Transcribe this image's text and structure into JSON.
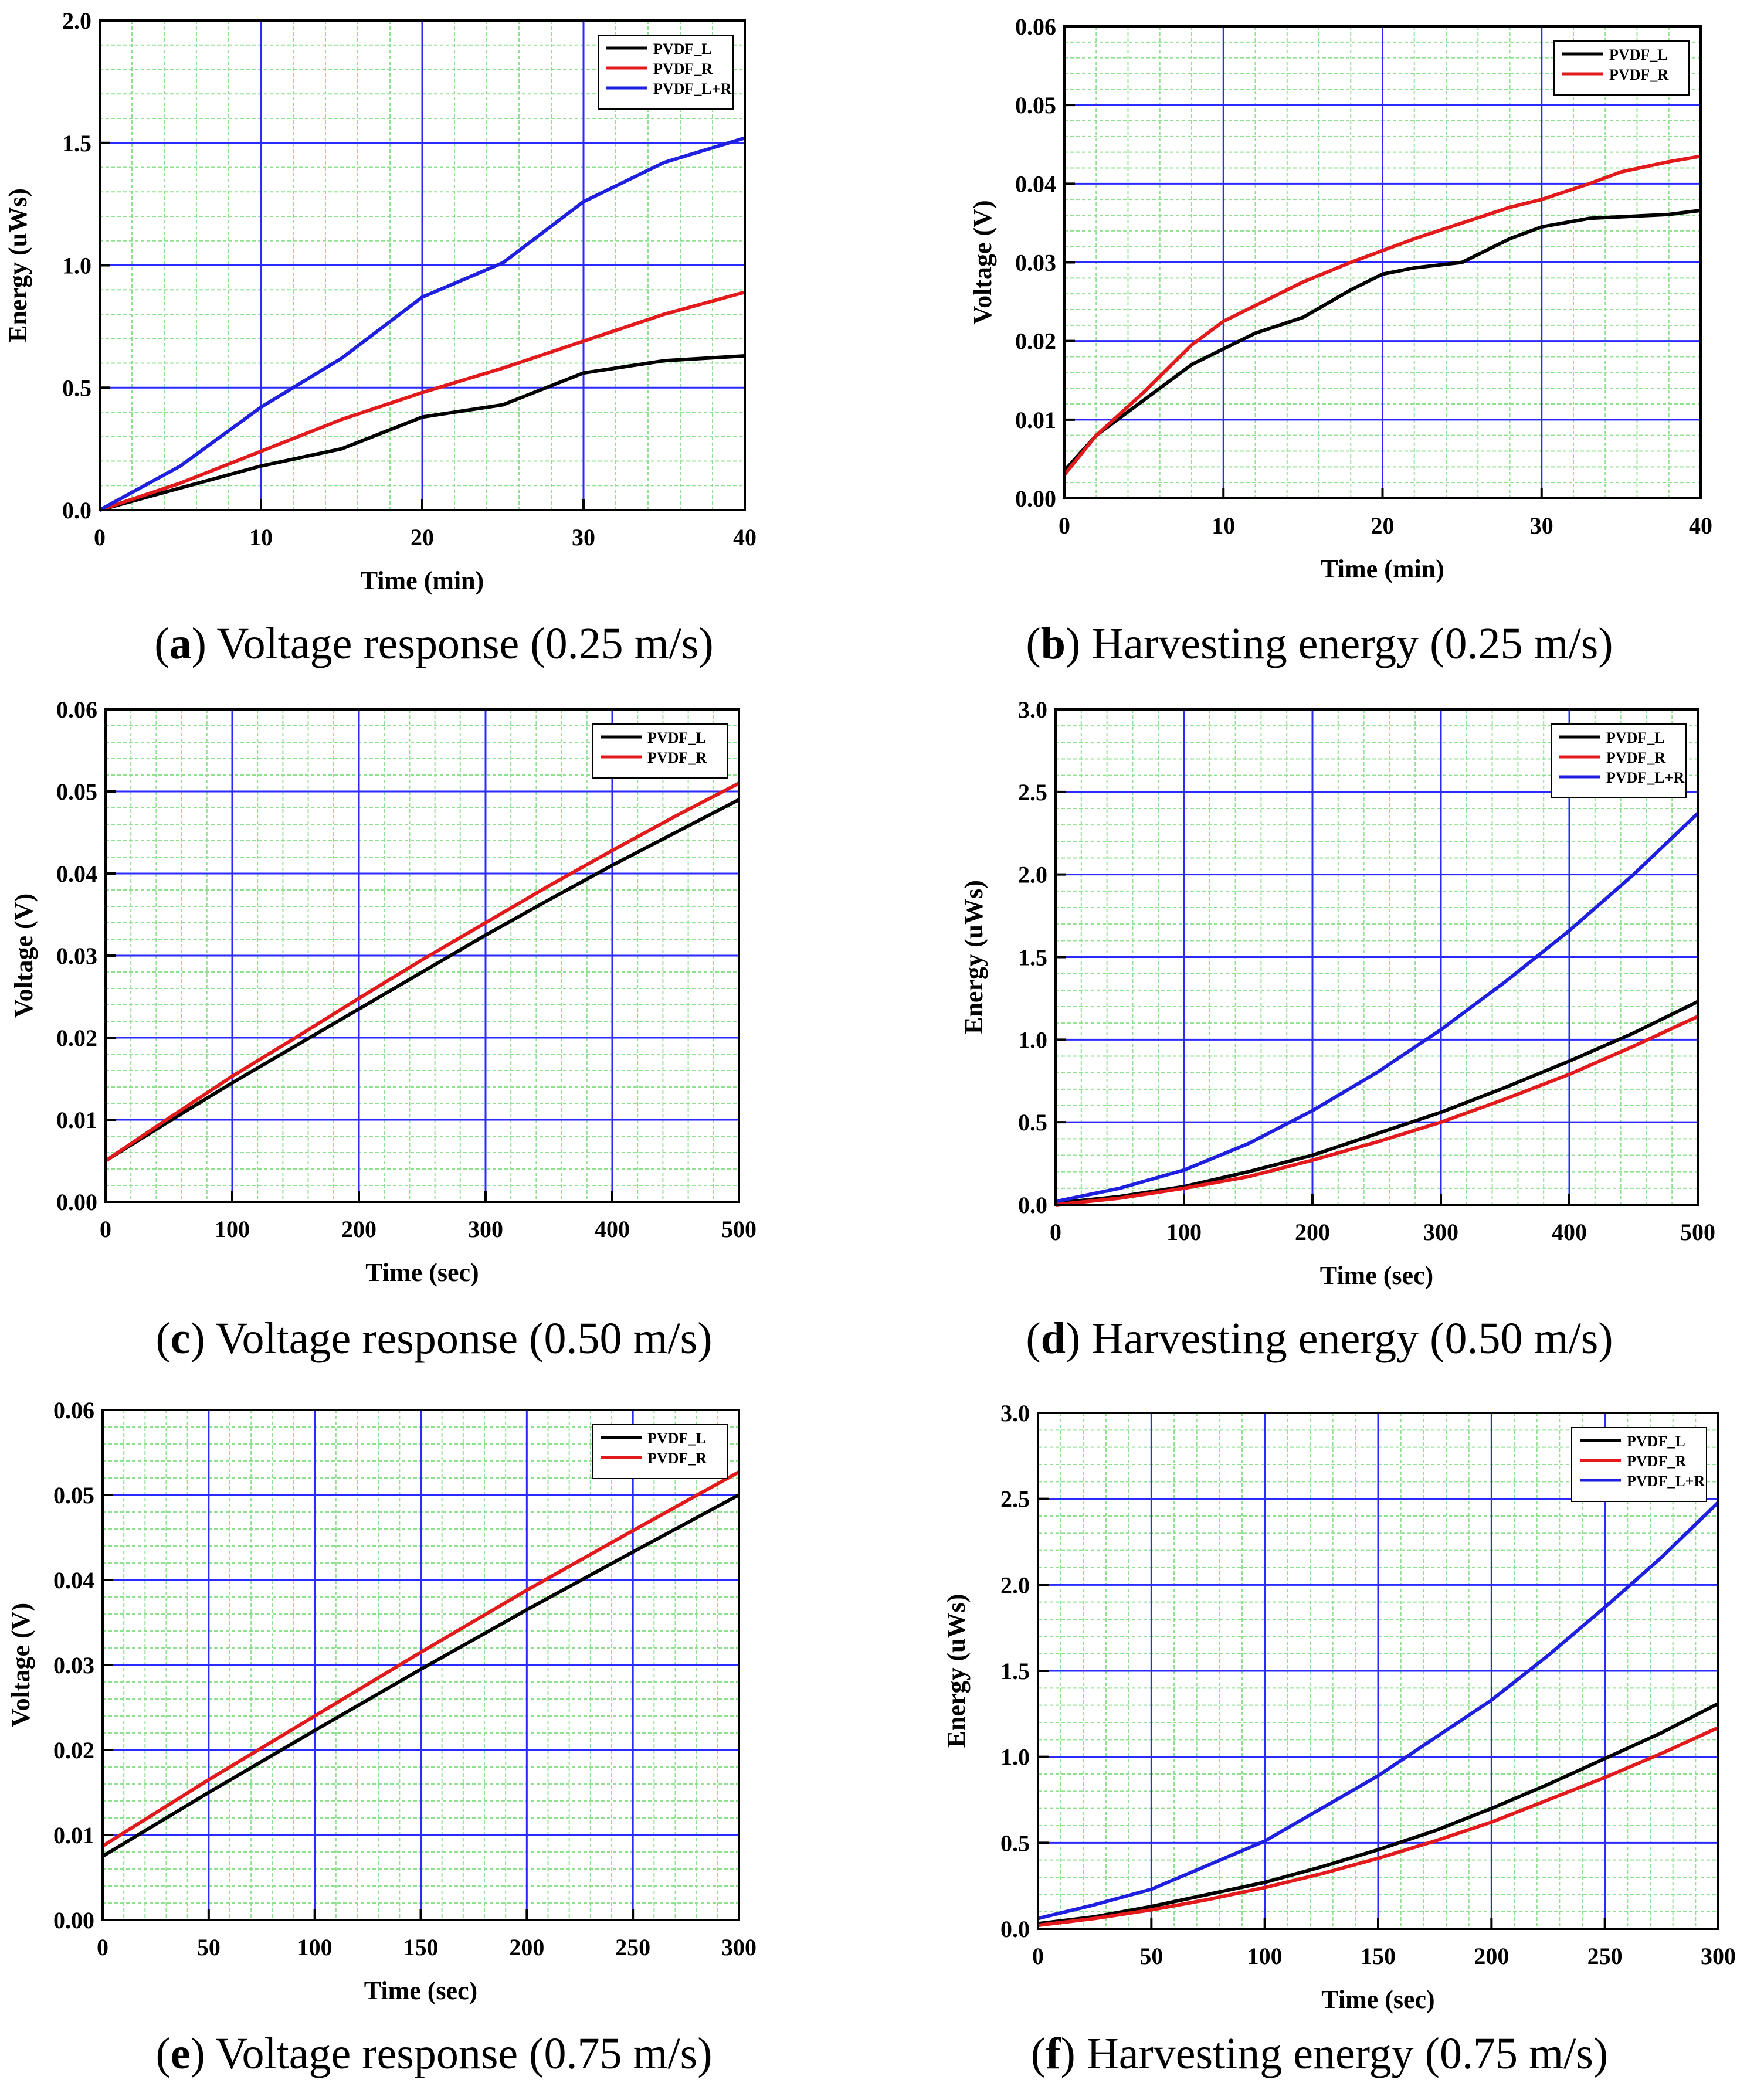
{
  "colors": {
    "series_L": "#000000",
    "series_R": "#e31a1c",
    "series_LR": "#1f1fe0",
    "major_grid": "#2a2aff",
    "minor_grid": "#8fe08f"
  },
  "chart_data": [
    {
      "type": "line",
      "letter": "a",
      "caption": "Voltage response (0.25 m/s)",
      "xlabel": "Time (min)",
      "ylabel": "Energy (uWs)",
      "xlim": [
        0,
        40
      ],
      "ylim": [
        0,
        2.0
      ],
      "xticks": [
        "0",
        "10",
        "20",
        "30",
        "40"
      ],
      "yticks": [
        "0.0",
        "0.5",
        "1.0",
        "1.5",
        "2.0"
      ],
      "legend": "top-right",
      "x": [
        0,
        5,
        10,
        15,
        20,
        25,
        30,
        35,
        40
      ],
      "series": [
        {
          "name": "PVDF_L",
          "color": "series_L",
          "values": [
            0,
            0.09,
            0.18,
            0.25,
            0.38,
            0.43,
            0.56,
            0.61,
            0.63
          ]
        },
        {
          "name": "PVDF_R",
          "color": "series_R",
          "values": [
            0,
            0.11,
            0.24,
            0.37,
            0.48,
            0.58,
            0.69,
            0.8,
            0.89
          ]
        },
        {
          "name": "PVDF_L+R",
          "color": "series_LR",
          "values": [
            0,
            0.18,
            0.42,
            0.62,
            0.87,
            1.01,
            1.26,
            1.42,
            1.52
          ]
        }
      ]
    },
    {
      "type": "line",
      "letter": "b",
      "caption": "Harvesting energy (0.25 m/s)",
      "xlabel": "Time (min)",
      "ylabel": "Voltage (V)",
      "xlim": [
        0,
        40
      ],
      "ylim": [
        0,
        0.06
      ],
      "xticks": [
        "0",
        "10",
        "20",
        "30",
        "40"
      ],
      "yticks": [
        "0.00",
        "0.01",
        "0.02",
        "0.03",
        "0.04",
        "0.05",
        "0.06"
      ],
      "legend": "top-right",
      "x": [
        0,
        2,
        5,
        8,
        10,
        12,
        15,
        18,
        20,
        22,
        25,
        28,
        30,
        33,
        35,
        38,
        40
      ],
      "series": [
        {
          "name": "PVDF_L",
          "color": "series_L",
          "values": [
            0.0035,
            0.008,
            0.0125,
            0.017,
            0.019,
            0.021,
            0.023,
            0.0265,
            0.0285,
            0.0293,
            0.03,
            0.033,
            0.0345,
            0.0356,
            0.0358,
            0.0361,
            0.0366
          ]
        },
        {
          "name": "PVDF_R",
          "color": "series_R",
          "values": [
            0.003,
            0.008,
            0.0135,
            0.0195,
            0.0225,
            0.0245,
            0.0275,
            0.03,
            0.0315,
            0.033,
            0.035,
            0.037,
            0.038,
            0.04,
            0.0415,
            0.0428,
            0.0435
          ]
        }
      ]
    },
    {
      "type": "line",
      "letter": "c",
      "caption": "Voltage response (0.50 m/s)",
      "xlabel": "Time (sec)",
      "ylabel": "Voltage (V)",
      "xlim": [
        0,
        500
      ],
      "ylim": [
        0,
        0.06
      ],
      "xticks": [
        "0",
        "100",
        "200",
        "300",
        "400",
        "500"
      ],
      "yticks": [
        "0.00",
        "0.01",
        "0.02",
        "0.03",
        "0.04",
        "0.05",
        "0.06"
      ],
      "legend": "top-right",
      "x": [
        0,
        50,
        100,
        150,
        200,
        250,
        300,
        350,
        400,
        450,
        500
      ],
      "series": [
        {
          "name": "PVDF_L",
          "color": "series_L",
          "values": [
            0.005,
            0.0098,
            0.0145,
            0.019,
            0.0235,
            0.028,
            0.0325,
            0.0368,
            0.041,
            0.045,
            0.049
          ]
        },
        {
          "name": "PVDF_R",
          "color": "series_R",
          "values": [
            0.005,
            0.0102,
            0.0153,
            0.02,
            0.0248,
            0.0295,
            0.034,
            0.0385,
            0.0428,
            0.047,
            0.051
          ]
        }
      ]
    },
    {
      "type": "line",
      "letter": "d",
      "caption": "Harvesting energy (0.50 m/s)",
      "xlabel": "Time (sec)",
      "ylabel": "Energy (uWs)",
      "xlim": [
        0,
        500
      ],
      "ylim": [
        0,
        3.0
      ],
      "xticks": [
        "0",
        "100",
        "200",
        "300",
        "400",
        "500"
      ],
      "yticks": [
        "0.0",
        "0.5",
        "1.0",
        "1.5",
        "2.0",
        "2.5",
        "3.0"
      ],
      "legend": "top-right",
      "x": [
        0,
        50,
        100,
        150,
        200,
        250,
        300,
        350,
        400,
        450,
        500
      ],
      "series": [
        {
          "name": "PVDF_L",
          "color": "series_L",
          "values": [
            0.01,
            0.05,
            0.11,
            0.2,
            0.3,
            0.43,
            0.56,
            0.71,
            0.87,
            1.04,
            1.23
          ]
        },
        {
          "name": "PVDF_R",
          "color": "series_R",
          "values": [
            0.0,
            0.04,
            0.1,
            0.17,
            0.27,
            0.38,
            0.5,
            0.64,
            0.79,
            0.96,
            1.14
          ]
        },
        {
          "name": "PVDF_L+R",
          "color": "series_LR",
          "values": [
            0.02,
            0.1,
            0.21,
            0.37,
            0.57,
            0.8,
            1.06,
            1.35,
            1.66,
            2.0,
            2.37
          ]
        }
      ]
    },
    {
      "type": "line",
      "letter": "e",
      "caption": "Voltage response (0.75 m/s)",
      "xlabel": "Time (sec)",
      "ylabel": "Voltage (V)",
      "xlim": [
        0,
        300
      ],
      "ylim": [
        0,
        0.06
      ],
      "xticks": [
        "0",
        "50",
        "100",
        "150",
        "200",
        "250",
        "300"
      ],
      "yticks": [
        "0.00",
        "0.01",
        "0.02",
        "0.03",
        "0.04",
        "0.05",
        "0.06"
      ],
      "legend": "top-right",
      "x": [
        0,
        50,
        100,
        150,
        200,
        250,
        300
      ],
      "series": [
        {
          "name": "PVDF_L",
          "color": "series_L",
          "values": [
            0.0075,
            0.015,
            0.0223,
            0.0295,
            0.0365,
            0.0433,
            0.05
          ]
        },
        {
          "name": "PVDF_R",
          "color": "series_R",
          "values": [
            0.0087,
            0.0165,
            0.024,
            0.0315,
            0.0388,
            0.0458,
            0.0527
          ]
        }
      ]
    },
    {
      "type": "line",
      "letter": "f",
      "caption": "Harvesting energy (0.75 m/s)",
      "xlabel": "Time (sec)",
      "ylabel": "Energy (uWs)",
      "xlim": [
        0,
        300
      ],
      "ylim": [
        0,
        3.0
      ],
      "xticks": [
        "0",
        "50",
        "100",
        "150",
        "200",
        "250",
        "300"
      ],
      "yticks": [
        "0.0",
        "0.5",
        "1.0",
        "1.5",
        "2.0",
        "2.5",
        "3.0"
      ],
      "legend": "top-right",
      "x": [
        0,
        25,
        50,
        75,
        100,
        125,
        150,
        175,
        200,
        225,
        250,
        275,
        300
      ],
      "series": [
        {
          "name": "PVDF_L",
          "color": "series_L",
          "values": [
            0.03,
            0.07,
            0.13,
            0.2,
            0.27,
            0.36,
            0.46,
            0.57,
            0.7,
            0.84,
            0.99,
            1.14,
            1.31
          ]
        },
        {
          "name": "PVDF_R",
          "color": "series_R",
          "values": [
            0.02,
            0.06,
            0.11,
            0.17,
            0.24,
            0.32,
            0.41,
            0.51,
            0.62,
            0.75,
            0.88,
            1.02,
            1.17
          ]
        },
        {
          "name": "PVDF_L+R",
          "color": "series_LR",
          "values": [
            0.06,
            0.14,
            0.23,
            0.37,
            0.51,
            0.7,
            0.89,
            1.11,
            1.33,
            1.59,
            1.87,
            2.16,
            2.48
          ]
        }
      ]
    }
  ]
}
